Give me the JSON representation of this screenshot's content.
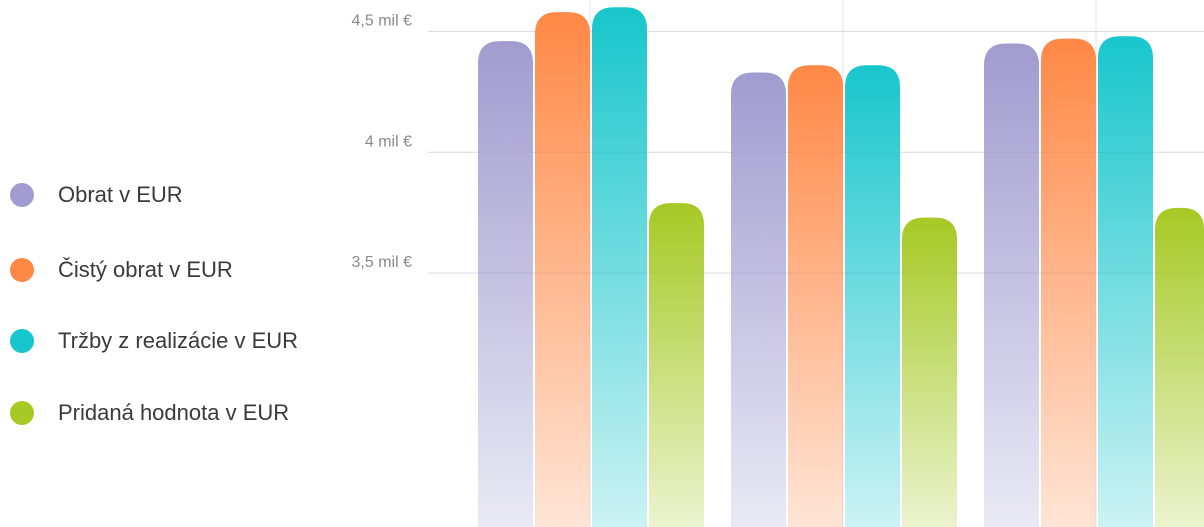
{
  "chart_data": {
    "type": "bar",
    "title": "",
    "xlabel": "",
    "ylabel": "",
    "ylim": [
      2.45,
      4.63
    ],
    "yticks": [
      {
        "value": 3.5,
        "label": "3,5 mil €"
      },
      {
        "value": 4.0,
        "label": "4 mil €"
      },
      {
        "value": 4.5,
        "label": "4,5 mil €"
      }
    ],
    "grid": true,
    "legend_position": "left",
    "categories": [
      "",
      "",
      ""
    ],
    "series": [
      {
        "name": "Obrat v EUR",
        "color": "#a09ccf",
        "values": [
          4.46,
          4.33,
          4.45
        ]
      },
      {
        "name": "Čistý obrat v EUR",
        "color": "#ff8845",
        "values": [
          4.58,
          4.36,
          4.47
        ]
      },
      {
        "name": "Tržby z realizácie v EUR",
        "color": "#17c6cc",
        "values": [
          4.6,
          4.36,
          4.48
        ]
      },
      {
        "name": "Pridaná hodnota v EUR",
        "color": "#a6c924",
        "values": [
          3.79,
          3.73,
          3.77
        ]
      }
    ]
  }
}
